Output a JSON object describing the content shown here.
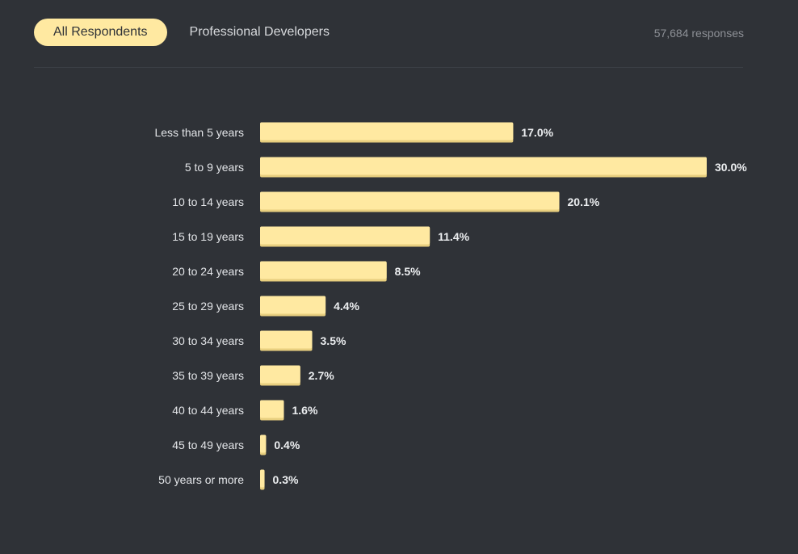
{
  "tabs": [
    {
      "label": "All Respondents",
      "active": true
    },
    {
      "label": "Professional Developers",
      "active": false
    }
  ],
  "responses_label": "57,684 responses",
  "colors": {
    "background": "#2f3237",
    "bar": "#ffe9a1",
    "bar_shadow": "#e8cf7f",
    "active_tab": "#ffe9a1"
  },
  "chart_data": {
    "type": "bar",
    "orientation": "horizontal",
    "title": "",
    "xlabel": "",
    "ylabel": "",
    "categories": [
      "Less than 5 years",
      "5 to 9 years",
      "10 to 14 years",
      "15 to 19 years",
      "20 to 24 years",
      "25 to 29 years",
      "30 to 34 years",
      "35 to 39 years",
      "40 to 44 years",
      "45 to 49 years",
      "50 years or more"
    ],
    "values": [
      17.0,
      30.0,
      20.1,
      11.4,
      8.5,
      4.4,
      3.5,
      2.7,
      1.6,
      0.4,
      0.3
    ],
    "value_labels": [
      "17.0%",
      "30.0%",
      "20.1%",
      "11.4%",
      "8.5%",
      "4.4%",
      "3.5%",
      "2.7%",
      "1.6%",
      "0.4%",
      "0.3%"
    ],
    "xlim": [
      0,
      30
    ],
    "grid": false,
    "legend": "none"
  }
}
